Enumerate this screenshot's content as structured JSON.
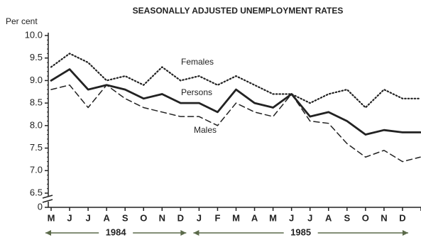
{
  "chart_data": {
    "type": "line",
    "title": "SEASONALLY ADJUSTED UNEMPLOYMENT RATES",
    "y_label": "Per cent",
    "categories": [
      "M",
      "J",
      "J",
      "A",
      "S",
      "O",
      "N",
      "D",
      "J",
      "F",
      "M",
      "A",
      "M",
      "J",
      "J",
      "A",
      "S",
      "O",
      "N",
      "D",
      null
    ],
    "year_labels": [
      "1984",
      "1985"
    ],
    "ylim": [
      6.5,
      10
    ],
    "yticks": [
      {
        "value": 10,
        "label": "10.0"
      },
      9.5,
      {
        "value": 9,
        "label": "9.0"
      },
      8.5,
      {
        "value": 8,
        "label": "8.0"
      },
      7.5,
      {
        "value": 7,
        "label": "7.0"
      },
      6.5,
      0
    ],
    "series": [
      {
        "name": "Females",
        "color": "#222222",
        "style": "dotted",
        "values": [
          9.3,
          9.6,
          9.4,
          9.0,
          9.1,
          8.9,
          9.3,
          9.0,
          9.1,
          8.9,
          9.1,
          8.9,
          8.7,
          8.7,
          8.5,
          8.7,
          8.8,
          8.4,
          8.8,
          8.6,
          8.6
        ]
      },
      {
        "name": "Persons",
        "color": "#222222",
        "style": "solid",
        "values": [
          9.0,
          9.25,
          8.8,
          8.9,
          8.8,
          8.6,
          8.7,
          8.5,
          8.5,
          8.3,
          8.8,
          8.5,
          8.4,
          8.7,
          8.2,
          8.3,
          8.1,
          7.8,
          7.9,
          7.85,
          7.85
        ]
      },
      {
        "name": "Males",
        "color": "#222222",
        "style": "dashed",
        "values": [
          8.8,
          8.9,
          8.4,
          8.9,
          8.6,
          8.4,
          8.3,
          8.2,
          8.2,
          8.0,
          8.5,
          8.3,
          8.2,
          8.7,
          8.1,
          8.05,
          7.6,
          7.3,
          7.45,
          7.2,
          7.3
        ]
      }
    ]
  }
}
